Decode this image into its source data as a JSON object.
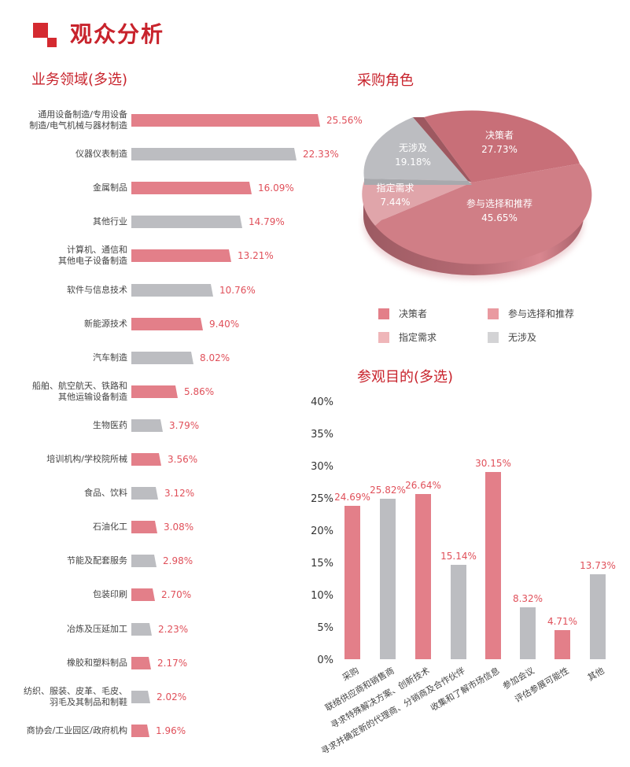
{
  "header": {
    "title": "观众分析",
    "accent_color": "#d42a30"
  },
  "colors": {
    "pink": "#e37f89",
    "gray": "#bcbdc1",
    "value_red": "#e0505a",
    "title_red": "#c8232c"
  },
  "business_fields": {
    "title": "业务领域(多选)",
    "items": [
      {
        "label_lines": [
          "通用设备制造/专用设备",
          "制造/电气机械与器材制造"
        ],
        "value": "25.56%"
      },
      {
        "label_lines": [
          "仪器仪表制造"
        ],
        "value": "22.33%"
      },
      {
        "label_lines": [
          "金属制品"
        ],
        "value": "16.09%"
      },
      {
        "label_lines": [
          "其他行业"
        ],
        "value": "14.79%"
      },
      {
        "label_lines": [
          "计算机、通信和",
          "其他电子设备制造"
        ],
        "value": "13.21%"
      },
      {
        "label_lines": [
          "软件与信息技术"
        ],
        "value": "10.76%"
      },
      {
        "label_lines": [
          "新能源技术"
        ],
        "value": "9.40%"
      },
      {
        "label_lines": [
          "汽车制造"
        ],
        "value": "8.02%"
      },
      {
        "label_lines": [
          "船舶、航空航天、铁路和",
          "其他运输设备制造"
        ],
        "value": "5.86%"
      },
      {
        "label_lines": [
          "生物医药"
        ],
        "value": "3.79%"
      },
      {
        "label_lines": [
          "培训机构/学校院所械"
        ],
        "value": "3.56%"
      },
      {
        "label_lines": [
          "食品、饮料"
        ],
        "value": "3.12%"
      },
      {
        "label_lines": [
          "石油化工"
        ],
        "value": "3.08%"
      },
      {
        "label_lines": [
          "节能及配套服务"
        ],
        "value": "2.98%"
      },
      {
        "label_lines": [
          "包装印刷"
        ],
        "value": "2.70%"
      },
      {
        "label_lines": [
          "冶炼及压延加工"
        ],
        "value": "2.23%"
      },
      {
        "label_lines": [
          "橡胶和塑料制品"
        ],
        "value": "2.17%"
      },
      {
        "label_lines": [
          "纺织、服装、皮革、毛皮、",
          "羽毛及其制品和制鞋"
        ],
        "value": "2.02%"
      },
      {
        "label_lines": [
          "商协会/工业园区/政府机构"
        ],
        "value": "1.96%"
      }
    ]
  },
  "purchase_role": {
    "title": "采购角色",
    "slices": [
      {
        "label": "决策者",
        "value": "27.73%"
      },
      {
        "label": "参与选择和推荐",
        "value": "45.65%"
      },
      {
        "label": "指定需求",
        "value": "7.44%"
      },
      {
        "label": "无涉及",
        "value": "19.18%"
      }
    ],
    "legend": [
      {
        "label": "决策者",
        "color": "#e37f89"
      },
      {
        "label": "参与选择和推荐",
        "color": "#e99aa0"
      },
      {
        "label": "指定需求",
        "color": "#efb6b9"
      },
      {
        "label": "无涉及",
        "color": "#d3d3d5"
      }
    ]
  },
  "visit_purpose": {
    "title": "参观目的(多选)",
    "y_ticks": [
      "40%",
      "35%",
      "30%",
      "25%",
      "20%",
      "15%",
      "10%",
      "5%",
      "0%"
    ],
    "bars": [
      {
        "label": "采购",
        "value": "24.69%"
      },
      {
        "label": "联络供应商和销售商",
        "value": "25.82%"
      },
      {
        "label": "寻求特殊解决方案、创新技术",
        "value": "26.64%"
      },
      {
        "label": "寻求并确定新的代理商、分销商及合作伙伴",
        "value": "15.14%"
      },
      {
        "label": "收集和了解市场信息",
        "value": "30.15%"
      },
      {
        "label": "参加会议",
        "value": "8.32%"
      },
      {
        "label": "评估参展可能性",
        "value": "4.71%"
      },
      {
        "label": "其他",
        "value": "13.73%"
      }
    ]
  },
  "chart_data": [
    {
      "type": "bar",
      "orientation": "horizontal",
      "title": "业务领域(多选)",
      "categories": [
        "通用设备制造/专用设备制造/电气机械与器材制造",
        "仪器仪表制造",
        "金属制品",
        "其他行业",
        "计算机、通信和其他电子设备制造",
        "软件与信息技术",
        "新能源技术",
        "汽车制造",
        "船舶、航空航天、铁路和其他运输设备制造",
        "生物医药",
        "培训机构/学校院所械",
        "食品、饮料",
        "石油化工",
        "节能及配套服务",
        "包装印刷",
        "冶炼及压延加工",
        "橡胶和塑料制品",
        "纺织、服装、皮革、毛皮、羽毛及其制品和制鞋",
        "商协会/工业园区/政府机构"
      ],
      "values": [
        25.56,
        22.33,
        16.09,
        14.79,
        13.21,
        10.76,
        9.4,
        8.02,
        5.86,
        3.79,
        3.56,
        3.12,
        3.08,
        2.98,
        2.7,
        2.23,
        2.17,
        2.02,
        1.96
      ],
      "unit": "%",
      "bar_colors_alternate": [
        "#e37f89",
        "#bcbdc1"
      ],
      "xlabel": "",
      "ylabel": "",
      "grid": false,
      "legend": "none"
    },
    {
      "type": "pie",
      "style": "3d",
      "title": "采购角色",
      "categories": [
        "决策者",
        "参与选择和推荐",
        "指定需求",
        "无涉及"
      ],
      "values": [
        27.73,
        45.65,
        7.44,
        19.18
      ],
      "unit": "%",
      "legend": "bottom"
    },
    {
      "type": "bar",
      "orientation": "vertical",
      "title": "参观目的(多选)",
      "categories": [
        "采购",
        "联络供应商和销售商",
        "寻求特殊解决方案、创新技术",
        "寻求并确定新的代理商、分销商及合作伙伴",
        "收集和了解市场信息",
        "参加会议",
        "评估参展可能性",
        "其他"
      ],
      "values": [
        24.69,
        25.82,
        26.64,
        15.14,
        30.15,
        8.32,
        4.71,
        13.73
      ],
      "unit": "%",
      "ylim": [
        0,
        40
      ],
      "yticks": [
        0,
        5,
        10,
        15,
        20,
        25,
        30,
        35,
        40
      ],
      "bar_colors_alternate": [
        "#e37f89",
        "#bcbdc1"
      ],
      "grid": false,
      "legend": "none"
    }
  ]
}
